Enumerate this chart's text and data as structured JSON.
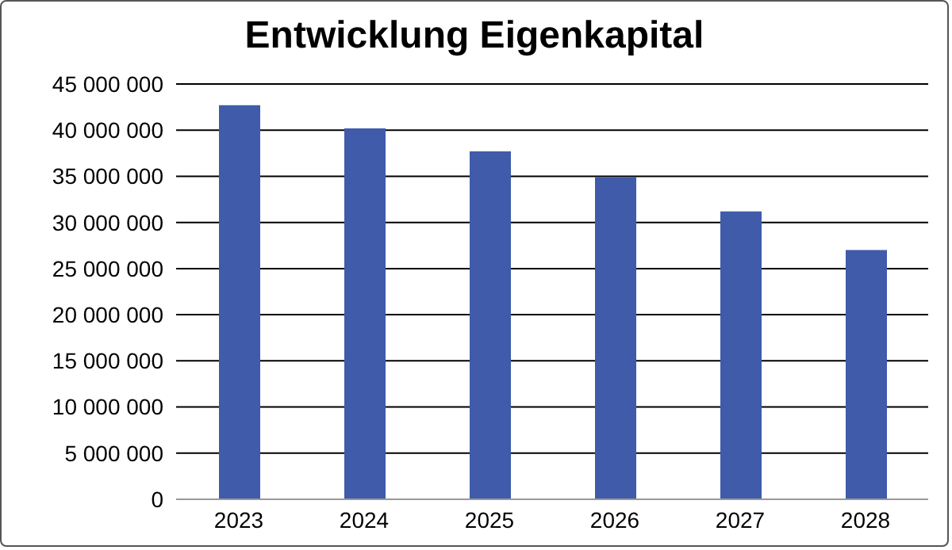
{
  "chart_data": {
    "type": "bar",
    "title": "Entwicklung Eigenkapital",
    "categories": [
      "2023",
      "2024",
      "2025",
      "2026",
      "2027",
      "2028"
    ],
    "values": [
      42700000,
      40200000,
      37700000,
      34900000,
      31200000,
      27000000
    ],
    "color": "#3f5ba9",
    "ylim": [
      0,
      45000000
    ],
    "yticks": [
      {
        "value": 0,
        "label": "0"
      },
      {
        "value": 5000000,
        "label": "5 000 000"
      },
      {
        "value": 10000000,
        "label": "10 000 000"
      },
      {
        "value": 15000000,
        "label": "15 000 000"
      },
      {
        "value": 20000000,
        "label": "20 000 000"
      },
      {
        "value": 25000000,
        "label": "25 000 000"
      },
      {
        "value": 30000000,
        "label": "30 000 000"
      },
      {
        "value": 35000000,
        "label": "35 000 000"
      },
      {
        "value": 40000000,
        "label": "40 000 000"
      },
      {
        "value": 45000000,
        "label": "45 000 000"
      }
    ],
    "grid": "y"
  }
}
